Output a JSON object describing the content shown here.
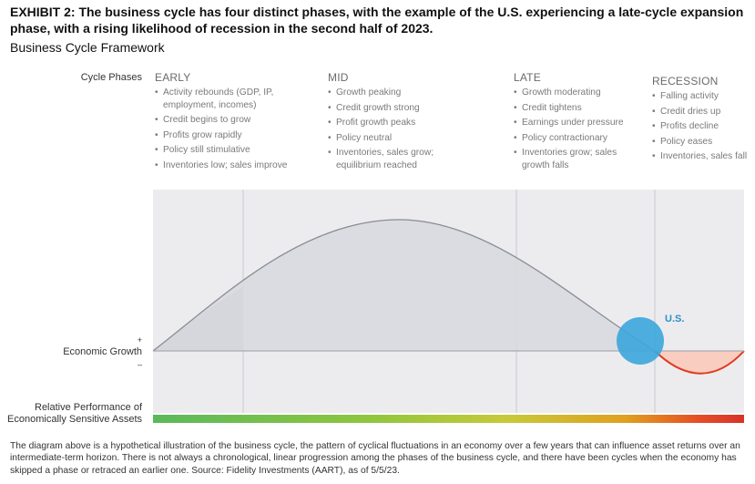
{
  "header": {
    "exhibit_title": "EXHIBIT 2: The business cycle has four distinct phases, with the example of the U.S. experiencing a late-cycle expansion phase, with a rising likelihood of recession in the second half of 2023.",
    "subtitle": "Business Cycle Framework"
  },
  "labels": {
    "cycle_phases": "Cycle Phases",
    "economic_growth": "Economic Growth",
    "plus": "+",
    "minus": "–",
    "relative_performance_line1": "Relative Performance of",
    "relative_performance_line2": "Economically Sensitive Assets",
    "us_marker": "U.S."
  },
  "phases": [
    {
      "name": "EARLY",
      "bullets": [
        "Activity rebounds (GDP, IP, employment, incomes)",
        "Credit begins to grow",
        "Profits grow rapidly",
        "Policy still stimulative",
        "Inventories low; sales improve"
      ]
    },
    {
      "name": "MID",
      "bullets": [
        "Growth peaking",
        "Credit growth strong",
        "Profit growth peaks",
        "Policy neutral",
        "Inventories, sales grow; equilibrium reached"
      ]
    },
    {
      "name": "LATE",
      "bullets": [
        "Growth moderating",
        "Credit tightens",
        "Earnings under pressure",
        "Policy contractionary",
        "Inventories grow; sales growth falls"
      ]
    },
    {
      "name": "RECESSION",
      "bullets": [
        "Falling activity",
        "Credit dries up",
        "Profits decline",
        "Policy eases",
        "Inventories, sales fall"
      ]
    }
  ],
  "colors": {
    "panel_bg": "#ececef",
    "curve_fill": "#d8d9de",
    "curve_line": "#8a8c94",
    "recession_fill": "#f9cdbf",
    "recession_line": "#e03a1e",
    "us_circle": "#3ba6dc",
    "us_label": "#2d8fc7"
  },
  "footnote": "The diagram above is a hypothetical illustration of the business cycle, the pattern of cyclical fluctuations in an economy over a few years that can influence asset returns over an intermediate-term horizon. There is not always a chronological, linear progression among the phases of the business cycle, and there have been cycles when the economy has skipped a phase or retraced an earlier one. Source: Fidelity Investments (AART), as of 5/5/23."
}
